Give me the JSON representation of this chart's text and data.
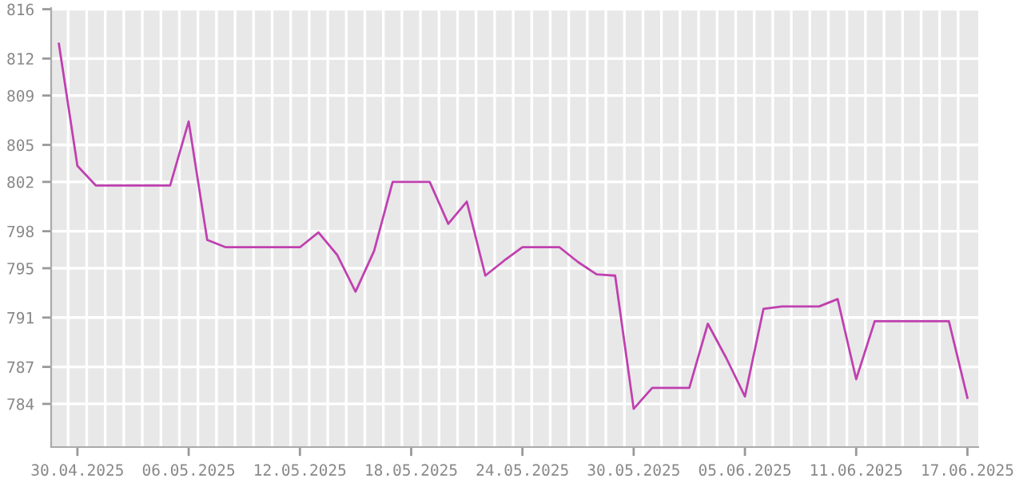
{
  "chart_data": {
    "type": "line",
    "x": [
      "2025-04-29",
      "2025-04-30",
      "2025-05-01",
      "2025-05-02",
      "2025-05-03",
      "2025-05-04",
      "2025-05-05",
      "2025-05-06",
      "2025-05-07",
      "2025-05-08",
      "2025-05-09",
      "2025-05-10",
      "2025-05-11",
      "2025-05-12",
      "2025-05-13",
      "2025-05-14",
      "2025-05-15",
      "2025-05-16",
      "2025-05-17",
      "2025-05-18",
      "2025-05-19",
      "2025-05-20",
      "2025-05-21",
      "2025-05-22",
      "2025-05-23",
      "2025-05-24",
      "2025-05-25",
      "2025-05-26",
      "2025-05-27",
      "2025-05-28",
      "2025-05-29",
      "2025-05-30",
      "2025-05-31",
      "2025-06-01",
      "2025-06-02",
      "2025-06-03",
      "2025-06-04",
      "2025-06-05",
      "2025-06-06",
      "2025-06-07",
      "2025-06-08",
      "2025-06-09",
      "2025-06-10",
      "2025-06-11",
      "2025-06-12",
      "2025-06-13",
      "2025-06-14",
      "2025-06-15",
      "2025-06-16",
      "2025-06-17"
    ],
    "series": [
      {
        "color": "#c040b0",
        "values": [
          813.2,
          803.3,
          801.7,
          801.7,
          801.7,
          801.7,
          801.7,
          806.9,
          797.3,
          796.7,
          796.7,
          796.7,
          796.7,
          796.7,
          797.9,
          796.1,
          793.1,
          796.4,
          802.0,
          802.0,
          802.0,
          798.6,
          800.4,
          794.4,
          795.6,
          796.7,
          796.7,
          796.7,
          795.5,
          794.5,
          794.4,
          783.6,
          785.3,
          785.3,
          785.3,
          790.5,
          787.7,
          784.6,
          791.7,
          791.9,
          791.9,
          791.9,
          792.5,
          786.0,
          790.7,
          790.7,
          790.7,
          790.7,
          790.7,
          784.5
        ]
      }
    ],
    "ylim": [
      780.5,
      816.1
    ],
    "yticks": [
      784,
      787,
      791,
      795,
      798,
      802,
      805,
      809,
      812,
      816
    ],
    "xlim": [
      "2025-04-28T14:00",
      "2025-06-17T14:00"
    ],
    "xticks": [
      {
        "value": "2025-04-30",
        "label": "30.04.2025"
      },
      {
        "value": "2025-05-06",
        "label": "06.05.2025"
      },
      {
        "value": "2025-05-12",
        "label": "12.05.2025"
      },
      {
        "value": "2025-05-18",
        "label": "18.05.2025"
      },
      {
        "value": "2025-05-24",
        "label": "24.05.2025"
      },
      {
        "value": "2025-05-30",
        "label": "30.05.2025"
      },
      {
        "value": "2025-06-05",
        "label": "05.06.2025"
      },
      {
        "value": "2025-06-11",
        "label": "11.06.2025"
      },
      {
        "value": "2025-06-17",
        "label": "17.06.2025"
      },
      {
        "value": "2025-04-29T12:00",
        "label": null
      },
      {
        "value": "2025-04-30T12:00",
        "label": null
      },
      {
        "value": "2025-05-01T12:00",
        "label": null
      },
      {
        "value": "2025-05-02T12:00",
        "label": null
      },
      {
        "value": "2025-05-03T12:00",
        "label": null
      },
      {
        "value": "2025-05-04T12:00",
        "label": null
      },
      {
        "value": "2025-05-05T12:00",
        "label": null
      },
      {
        "value": "2025-05-06T12:00",
        "label": null
      },
      {
        "value": "2025-05-07T12:00",
        "label": null
      },
      {
        "value": "2025-05-08T12:00",
        "label": null
      },
      {
        "value": "2025-05-09T12:00",
        "label": null
      },
      {
        "value": "2025-05-10T12:00",
        "label": null
      },
      {
        "value": "2025-05-11T12:00",
        "label": null
      },
      {
        "value": "2025-05-12T12:00",
        "label": null
      },
      {
        "value": "2025-05-13T12:00",
        "label": null
      },
      {
        "value": "2025-05-14T12:00",
        "label": null
      },
      {
        "value": "2025-05-15T12:00",
        "label": null
      },
      {
        "value": "2025-05-16T12:00",
        "label": null
      },
      {
        "value": "2025-05-17T12:00",
        "label": null
      },
      {
        "value": "2025-05-18T12:00",
        "label": null
      },
      {
        "value": "2025-05-19T12:00",
        "label": null
      },
      {
        "value": "2025-05-20T12:00",
        "label": null
      },
      {
        "value": "2025-05-21T12:00",
        "label": null
      },
      {
        "value": "2025-05-22T12:00",
        "label": null
      },
      {
        "value": "2025-05-23T12:00",
        "label": null
      },
      {
        "value": "2025-05-24T12:00",
        "label": null
      },
      {
        "value": "2025-05-25T12:00",
        "label": null
      },
      {
        "value": "2025-05-26T12:00",
        "label": null
      },
      {
        "value": "2025-05-27T12:00",
        "label": null
      },
      {
        "value": "2025-05-28T12:00",
        "label": null
      },
      {
        "value": "2025-05-29T12:00",
        "label": null
      },
      {
        "value": "2025-05-30T12:00",
        "label": null
      },
      {
        "value": "2025-05-31T12:00",
        "label": null
      },
      {
        "value": "2025-06-01T12:00",
        "label": null
      },
      {
        "value": "2025-06-02T12:00",
        "label": null
      },
      {
        "value": "2025-06-03T12:00",
        "label": null
      },
      {
        "value": "2025-06-04T12:00",
        "label": null
      },
      {
        "value": "2025-06-05T12:00",
        "label": null
      },
      {
        "value": "2025-06-06T12:00",
        "label": null
      },
      {
        "value": "2025-06-07T12:00",
        "label": null
      },
      {
        "value": "2025-06-08T12:00",
        "label": null
      },
      {
        "value": "2025-06-09T12:00",
        "label": null
      },
      {
        "value": "2025-06-10T12:00",
        "label": null
      },
      {
        "value": "2025-06-11T12:00",
        "label": null
      },
      {
        "value": "2025-06-12T12:00",
        "label": null
      },
      {
        "value": "2025-06-13T12:00",
        "label": null
      },
      {
        "value": "2025-06-14T12:00",
        "label": null
      },
      {
        "value": "2025-06-15T12:00",
        "label": null
      },
      {
        "value": "2025-06-16T12:00",
        "label": null
      }
    ],
    "grid": true,
    "marker": "none",
    "line_style": "solid"
  }
}
